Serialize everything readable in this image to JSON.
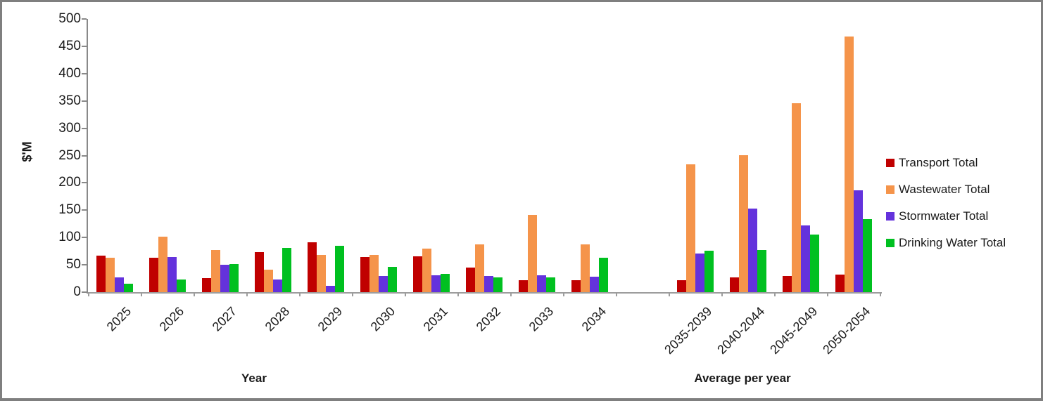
{
  "chart_data": {
    "type": "bar",
    "title": "",
    "ylabel": "$'M",
    "xlabel_groups": [
      "Year",
      "Average per year"
    ],
    "ylim": [
      0,
      500
    ],
    "ytick_step": 50,
    "grid": false,
    "legend_position": "right",
    "categories": [
      "2025",
      "2026",
      "2027",
      "2028",
      "2029",
      "2030",
      "2031",
      "2032",
      "2033",
      "2034",
      "2035-2039",
      "2040-2044",
      "2045-2049",
      "2050-2054"
    ],
    "gap_before_index": 10,
    "series": [
      {
        "name": "Transport Total",
        "color": "#C00000",
        "values": [
          67,
          63,
          26,
          73,
          91,
          64,
          66,
          45,
          22,
          22,
          22,
          27,
          29,
          32
        ]
      },
      {
        "name": "Wastewater Total",
        "color": "#F5944A",
        "values": [
          63,
          101,
          77,
          41,
          68,
          68,
          80,
          88,
          142,
          88,
          234,
          250,
          346,
          468
        ]
      },
      {
        "name": "Stormwater Total",
        "color": "#6432DC",
        "values": [
          27,
          64,
          50,
          23,
          12,
          29,
          31,
          29,
          31,
          28,
          71,
          153,
          122,
          186
        ]
      },
      {
        "name": "Drinking Water Total",
        "color": "#00C020",
        "values": [
          16,
          23,
          52,
          81,
          85,
          46,
          33,
          27,
          27,
          63,
          76,
          77,
          106,
          134
        ]
      }
    ]
  }
}
